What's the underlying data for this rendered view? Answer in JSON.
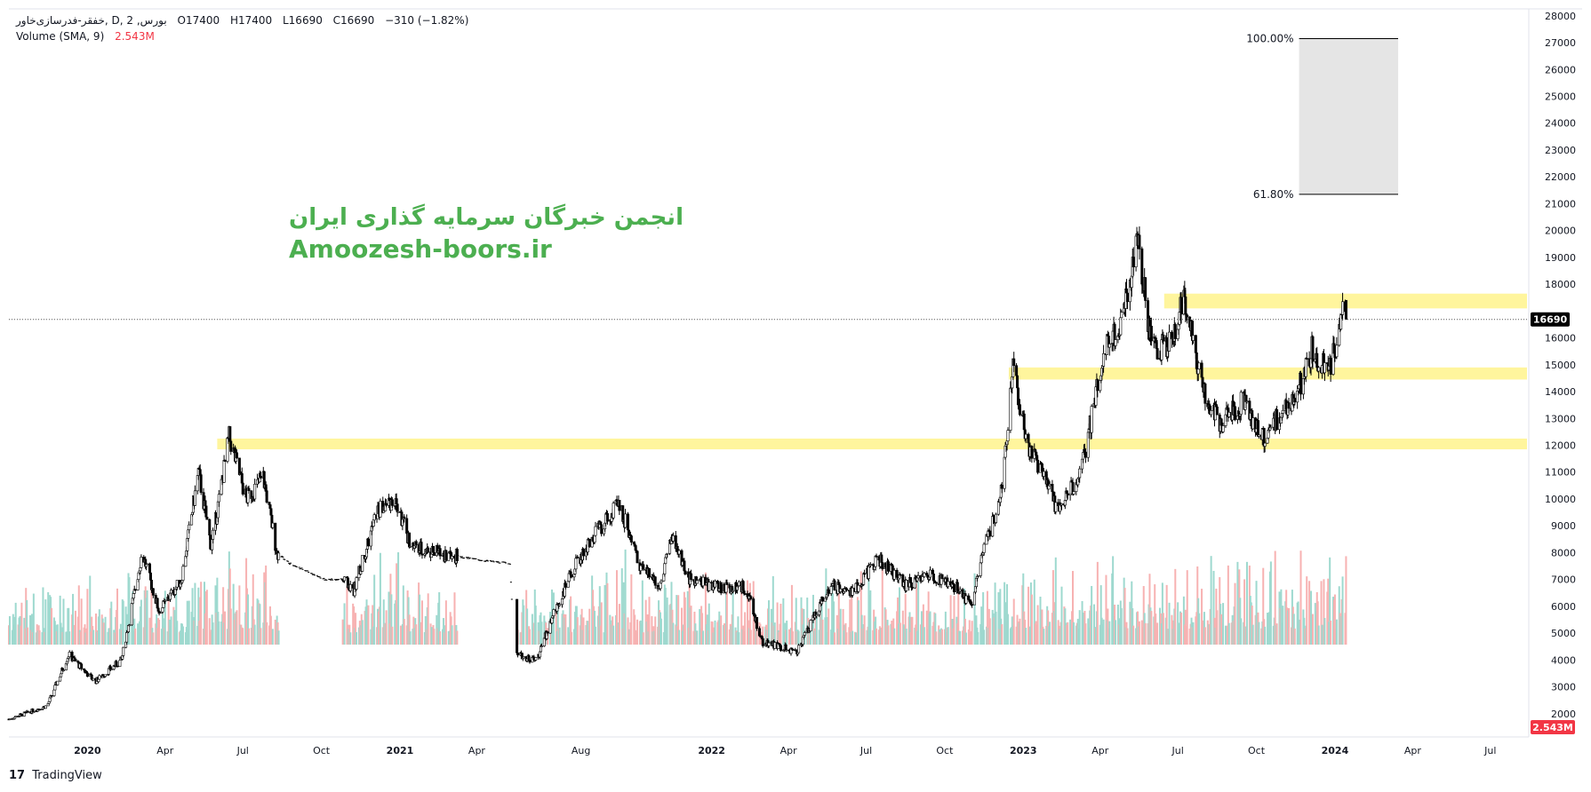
{
  "header": {
    "symbol_line": "خفقر-فدرسازی‌خاور, D, بورس, 2",
    "ohlc": {
      "o": "O17400",
      "h": "H17400",
      "l": "L16690",
      "c": "C16690",
      "chg": "−310 (−1.82%)"
    },
    "volume_label": "Volume (SMA, 9)",
    "volume_value": "2.543M"
  },
  "watermark": {
    "title": "انجمن خبرگان سرمایه گذاری ایران",
    "site": "Amoozesh-boors.ir"
  },
  "branding": {
    "logo_mark": "17",
    "name": "TradingView"
  },
  "colors": {
    "up_candle": "#ffffff",
    "down_candle": "#000000",
    "wick": "#000000",
    "vol_up": "#9ed9cf",
    "vol_down": "#f7b2b2",
    "zone": "#fff59d",
    "fib_fill": "#e5e5e5",
    "watermark": "#4caf50",
    "last_price_bg": "#000000",
    "volume_badge": "#f23645"
  },
  "chart_data": {
    "type": "candlestick",
    "y_axis": {
      "min": 0,
      "max": 28000,
      "ticks": [
        2000,
        3000,
        4000,
        5000,
        6000,
        7000,
        8000,
        9000,
        10000,
        11000,
        12000,
        13000,
        14000,
        15000,
        16000,
        17000,
        18000,
        19000,
        20000,
        21000,
        22000,
        23000,
        24000,
        25000,
        26000,
        27000,
        28000
      ]
    },
    "x_axis": {
      "start": "2019-10-01",
      "end": "2024-08-15",
      "labels": [
        {
          "date": "2020-01-01",
          "text": "2020",
          "bold": true
        },
        {
          "date": "2020-04-01",
          "text": "Apr"
        },
        {
          "date": "2020-07-01",
          "text": "Jul"
        },
        {
          "date": "2020-10-01",
          "text": "Oct"
        },
        {
          "date": "2021-01-01",
          "text": "2021",
          "bold": true
        },
        {
          "date": "2021-04-01",
          "text": "Apr"
        },
        {
          "date": "2021-08-01",
          "text": "Aug"
        },
        {
          "date": "2022-01-01",
          "text": "2022",
          "bold": true
        },
        {
          "date": "2022-04-01",
          "text": "Apr"
        },
        {
          "date": "2022-07-01",
          "text": "Jul"
        },
        {
          "date": "2022-10-01",
          "text": "Oct"
        },
        {
          "date": "2023-01-01",
          "text": "2023",
          "bold": true
        },
        {
          "date": "2023-04-01",
          "text": "Apr"
        },
        {
          "date": "2023-07-01",
          "text": "Jul"
        },
        {
          "date": "2023-10-01",
          "text": "Oct"
        },
        {
          "date": "2024-01-01",
          "text": "2024",
          "bold": true
        },
        {
          "date": "2024-04-01",
          "text": "Apr"
        },
        {
          "date": "2024-07-01",
          "text": "Jul"
        }
      ]
    },
    "price_path": [
      [
        "2019-10-01",
        1800
      ],
      [
        "2019-11-15",
        2300
      ],
      [
        "2019-12-10",
        4200
      ],
      [
        "2020-01-10",
        3200
      ],
      [
        "2020-02-10",
        4000
      ],
      [
        "2020-03-05",
        8000
      ],
      [
        "2020-03-25",
        5800
      ],
      [
        "2020-04-20",
        7000
      ],
      [
        "2020-05-10",
        11000
      ],
      [
        "2020-05-25",
        8200
      ],
      [
        "2020-06-15",
        12300
      ],
      [
        "2020-07-05",
        10000
      ],
      [
        "2020-07-25",
        10800
      ],
      [
        "2020-08-10",
        8000
      ],
      [
        "2020-08-25",
        7600
      ],
      [
        "2020-10-05",
        7000
      ],
      [
        "2020-10-25",
        7000
      ],
      [
        "2020-11-08",
        6600
      ],
      [
        "2020-12-05",
        9500
      ],
      [
        "2020-12-25",
        10000
      ],
      [
        "2021-01-15",
        8200
      ],
      [
        "2021-03-01",
        7900
      ],
      [
        "2021-04-10",
        7700
      ],
      [
        "2021-05-10",
        7600
      ],
      [
        "2021-05-15",
        4200
      ],
      [
        "2021-06-10",
        4000
      ],
      [
        "2021-07-01",
        5800
      ],
      [
        "2021-07-25",
        7500
      ],
      [
        "2021-08-20",
        8800
      ],
      [
        "2021-09-15",
        9800
      ],
      [
        "2021-10-10",
        7500
      ],
      [
        "2021-11-01",
        6800
      ],
      [
        "2021-11-15",
        8600
      ],
      [
        "2021-12-05",
        7000
      ],
      [
        "2022-01-10",
        6700
      ],
      [
        "2022-02-10",
        6700
      ],
      [
        "2022-03-01",
        4700
      ],
      [
        "2022-04-10",
        4300
      ],
      [
        "2022-04-25",
        5200
      ],
      [
        "2022-05-20",
        6800
      ],
      [
        "2022-06-15",
        6500
      ],
      [
        "2022-07-15",
        7800
      ],
      [
        "2022-08-15",
        6800
      ],
      [
        "2022-09-15",
        7200
      ],
      [
        "2022-10-15",
        6700
      ],
      [
        "2022-11-01",
        6000
      ],
      [
        "2022-11-15",
        8000
      ],
      [
        "2022-12-05",
        10000
      ],
      [
        "2022-12-20",
        14800
      ],
      [
        "2023-01-05",
        12200
      ],
      [
        "2023-02-10",
        9600
      ],
      [
        "2023-03-10",
        11000
      ],
      [
        "2023-04-05",
        15500
      ],
      [
        "2023-04-25",
        16500
      ],
      [
        "2023-05-15",
        19800
      ],
      [
        "2023-06-01",
        15500
      ],
      [
        "2023-06-20",
        15800
      ],
      [
        "2023-07-10",
        17500
      ],
      [
        "2023-07-30",
        14000
      ],
      [
        "2023-08-20",
        12800
      ],
      [
        "2023-09-15",
        13700
      ],
      [
        "2023-10-10",
        12200
      ],
      [
        "2023-10-25",
        13000
      ],
      [
        "2023-11-15",
        13600
      ],
      [
        "2023-12-05",
        15600
      ],
      [
        "2023-12-25",
        14600
      ],
      [
        "2024-01-10",
        16900
      ],
      [
        "2024-01-14",
        16690
      ]
    ],
    "gap": {
      "from": "2021-05-12",
      "to": "2021-05-18"
    },
    "flat_segments": [
      {
        "from": "2020-08-15",
        "to": "2020-10-25"
      },
      {
        "from": "2021-03-10",
        "to": "2021-05-12"
      }
    ],
    "volume": {
      "max_value": 10000000,
      "last": "2.543M"
    },
    "zones": [
      {
        "from": "2020-06-01",
        "to": "2024-08-15",
        "y_low": 11850,
        "y_high": 12250
      },
      {
        "from": "2022-12-15",
        "to": "2024-08-15",
        "y_low": 14450,
        "y_high": 14900
      },
      {
        "from": "2023-06-15",
        "to": "2024-08-15",
        "y_low": 17100,
        "y_high": 17650
      }
    ],
    "fib_box": {
      "from": "2023-11-20",
      "to": "2024-03-15",
      "levels": [
        {
          "label": "100.00%",
          "price": 27150
        },
        {
          "label": "61.80%",
          "price": 21350
        }
      ]
    },
    "last_price": {
      "value": 16690,
      "label": "16690"
    }
  }
}
